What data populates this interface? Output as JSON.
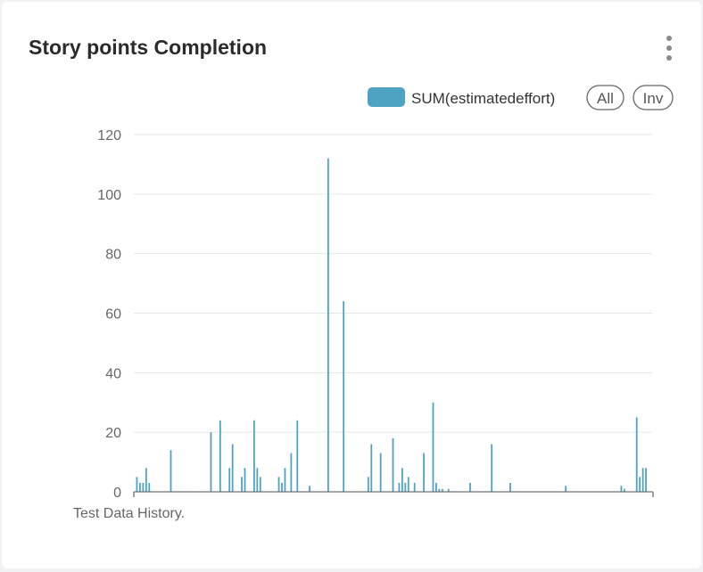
{
  "widget": {
    "title": "Story points Completion",
    "footer": "Test Data History.",
    "menu_icon": "kebab-menu-icon"
  },
  "legend": {
    "series_label": "SUM(estimatedeffort)",
    "all_label": "All",
    "inv_label": "Inv",
    "placement": "top-right"
  },
  "chart_data": {
    "type": "bar",
    "title": "",
    "xlabel": "",
    "ylabel": "",
    "ylim": [
      0,
      120
    ],
    "yticks": [
      0,
      20,
      40,
      60,
      80,
      100,
      120
    ],
    "grid": true,
    "color": "#4fa3c2",
    "x": [
      1,
      2,
      3,
      4,
      5,
      12,
      25,
      28,
      31,
      32,
      35,
      36,
      39,
      40,
      41,
      47,
      48,
      49,
      51,
      53,
      57,
      63,
      68,
      76,
      77,
      80,
      84,
      86,
      87,
      88,
      89,
      91,
      94,
      97,
      98,
      99,
      100,
      102,
      109,
      116,
      122,
      140,
      158,
      159,
      163,
      164,
      165,
      166
    ],
    "values": [
      5,
      3,
      3,
      8,
      3,
      14,
      20,
      24,
      8,
      16,
      5,
      8,
      24,
      8,
      5,
      5,
      3,
      8,
      13,
      24,
      2,
      112,
      64,
      5,
      16,
      13,
      18,
      3,
      8,
      3,
      5,
      3,
      13,
      30,
      3,
      1,
      1,
      1,
      3,
      16,
      3,
      2,
      2,
      1,
      25,
      5,
      8,
      8
    ]
  }
}
